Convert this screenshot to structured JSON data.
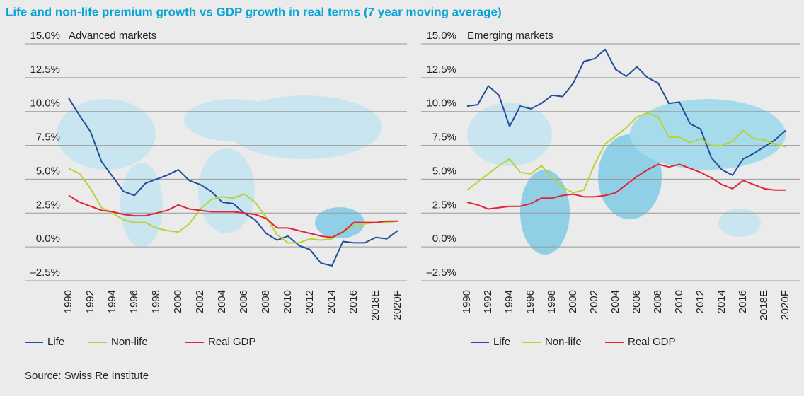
{
  "title": "Life and non-life premium growth vs GDP growth in real terms (7 year moving average)",
  "source": "Source: Swiss Re Institute",
  "chart_data": [
    {
      "type": "line",
      "subtitle": "Advanced markets",
      "categories": [
        "1990",
        null,
        "1992",
        null,
        "1994",
        null,
        "1996",
        null,
        "1998",
        null,
        "2000",
        null,
        "2002",
        null,
        "2004",
        null,
        "2006",
        null,
        "2008",
        null,
        "2010",
        null,
        "2012",
        null,
        "2014",
        null,
        "2016",
        null,
        "2018E",
        null,
        "2020F"
      ],
      "ylim": [
        -2.5,
        15
      ],
      "yticks": [
        {
          "value": -2.5,
          "label": "–2.5%"
        },
        {
          "value": 0,
          "label": "0.0%"
        },
        {
          "value": 2.5,
          "label": "2.5%"
        },
        {
          "value": 5,
          "label": "5.0%"
        },
        {
          "value": 7.5,
          "label": "7.5%"
        },
        {
          "value": 10,
          "label": "10.0%"
        },
        {
          "value": 12.5,
          "label": "12.5%"
        },
        {
          "value": 15,
          "label": "15.0%"
        }
      ],
      "grid": true,
      "series": [
        {
          "name": "Life",
          "color": "#234e9a",
          "values": [
            11.0,
            9.7,
            8.5,
            6.3,
            5.2,
            4.1,
            3.8,
            4.7,
            5.0,
            5.3,
            5.7,
            4.9,
            4.6,
            4.1,
            3.3,
            3.2,
            2.5,
            2.0,
            1.0,
            0.5,
            0.8,
            0.1,
            -0.2,
            -1.2,
            -1.4,
            0.4,
            0.3,
            0.3,
            0.7,
            0.6,
            1.2
          ]
        },
        {
          "name": "Non-life",
          "color": "#b9d236",
          "values": [
            5.8,
            5.4,
            4.3,
            2.9,
            2.5,
            2.0,
            1.8,
            1.8,
            1.4,
            1.2,
            1.1,
            1.7,
            2.8,
            3.5,
            3.7,
            3.6,
            3.9,
            3.3,
            2.2,
            0.9,
            0.3,
            0.3,
            0.6,
            0.5,
            0.6,
            1.2,
            1.5,
            1.7,
            1.8,
            1.8,
            1.9
          ]
        },
        {
          "name": "Real GDP",
          "color": "#e2233a",
          "values": [
            3.8,
            3.3,
            3.0,
            2.7,
            2.6,
            2.4,
            2.3,
            2.3,
            2.5,
            2.7,
            3.1,
            2.8,
            2.7,
            2.6,
            2.6,
            2.6,
            2.5,
            2.4,
            2.1,
            1.4,
            1.4,
            1.2,
            1.0,
            0.8,
            0.7,
            1.1,
            1.8,
            1.8,
            1.8,
            1.9,
            1.9
          ]
        }
      ]
    },
    {
      "type": "line",
      "subtitle": "Emerging markets",
      "categories": [
        "1990",
        null,
        "1992",
        null,
        "1994",
        null,
        "1996",
        null,
        "1998",
        null,
        "2000",
        null,
        "2002",
        null,
        "2004",
        null,
        "2006",
        null,
        "2008",
        null,
        "2010",
        null,
        "2012",
        null,
        "2014",
        null,
        "2016",
        null,
        "2018E",
        null,
        "2020F"
      ],
      "ylim": [
        -2.5,
        15
      ],
      "yticks": [
        {
          "value": -2.5,
          "label": "–2.5%"
        },
        {
          "value": 0,
          "label": "0.0%"
        },
        {
          "value": 2.5,
          "label": "2.5%"
        },
        {
          "value": 5,
          "label": "5.0%"
        },
        {
          "value": 7.5,
          "label": "7.5%"
        },
        {
          "value": 10,
          "label": "10.0%"
        },
        {
          "value": 12.5,
          "label": "12.5%"
        },
        {
          "value": 15,
          "label": "15.0%"
        }
      ],
      "grid": true,
      "series": [
        {
          "name": "Life",
          "color": "#234e9a",
          "values": [
            10.4,
            10.5,
            11.9,
            11.2,
            8.9,
            10.4,
            10.2,
            10.6,
            11.2,
            11.1,
            12.1,
            13.7,
            13.9,
            14.6,
            13.1,
            12.6,
            13.3,
            12.5,
            12.1,
            10.6,
            10.7,
            9.1,
            8.7,
            6.6,
            5.7,
            5.3,
            6.5,
            6.9,
            7.4,
            7.9,
            8.6
          ]
        },
        {
          "name": "Non-life",
          "color": "#b9d236",
          "values": [
            4.2,
            4.8,
            5.4,
            6.0,
            6.5,
            5.5,
            5.4,
            6.0,
            5.1,
            4.4,
            4.0,
            4.2,
            6.1,
            7.6,
            8.2,
            8.8,
            9.6,
            9.9,
            9.6,
            8.1,
            8.1,
            7.7,
            8.0,
            7.5,
            7.5,
            7.8,
            8.6,
            8.0,
            7.9,
            7.6,
            7.4
          ]
        },
        {
          "name": "Real GDP",
          "color": "#e2233a",
          "values": [
            3.3,
            3.1,
            2.8,
            2.9,
            3.0,
            3.0,
            3.2,
            3.6,
            3.6,
            3.8,
            3.9,
            3.7,
            3.7,
            3.8,
            4.0,
            4.6,
            5.2,
            5.7,
            6.1,
            5.9,
            6.1,
            5.8,
            5.5,
            5.1,
            4.6,
            4.3,
            4.9,
            4.6,
            4.3,
            4.2,
            4.2
          ]
        }
      ]
    }
  ]
}
